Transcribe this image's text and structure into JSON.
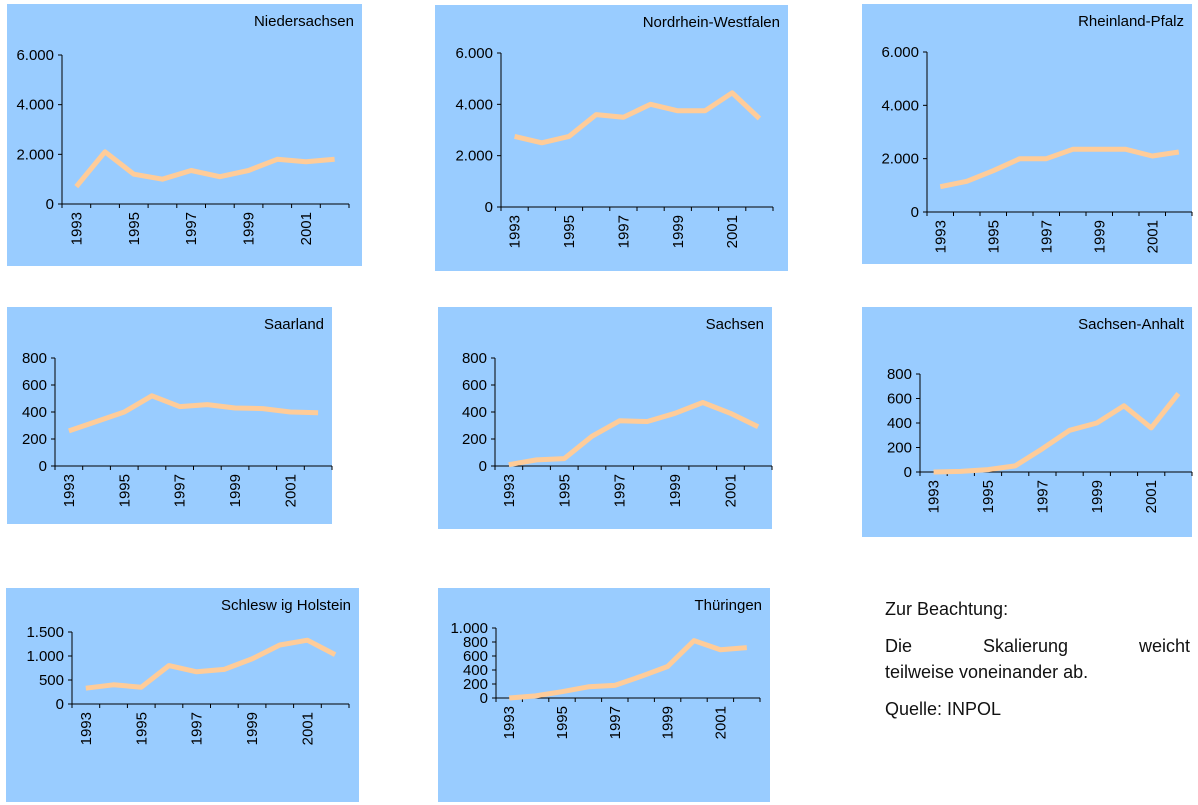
{
  "chart_data": [
    {
      "type": "line",
      "title": "Niedersachsen",
      "x": [
        1993,
        1994,
        1995,
        1996,
        1997,
        1998,
        1999,
        2000,
        2001,
        2002
      ],
      "x_tick_labels": [
        "1993",
        "1995",
        "1997",
        "1999",
        "2001"
      ],
      "series": [
        {
          "values": [
            700,
            2100,
            1200,
            1000,
            1350,
            1100,
            1350,
            1800,
            1700,
            1800
          ]
        }
      ],
      "ylim": [
        0,
        6000
      ],
      "y_ticks": [
        0,
        2000,
        4000,
        6000
      ],
      "y_tick_labels": [
        "0",
        "2.000",
        "4.000",
        "6.000"
      ],
      "line_color": "#ffcc99",
      "background": "#99ccff",
      "grid": false
    },
    {
      "type": "line",
      "title": "Nordrhein-Westfalen",
      "x": [
        1993,
        1994,
        1995,
        1996,
        1997,
        1998,
        1999,
        2000,
        2001,
        2002
      ],
      "x_tick_labels": [
        "1993",
        "1995",
        "1997",
        "1999",
        "2001"
      ],
      "series": [
        {
          "values": [
            2750,
            2500,
            2750,
            3600,
            3500,
            4000,
            3750,
            3750,
            4450,
            3450
          ]
        }
      ],
      "ylim": [
        0,
        6000
      ],
      "y_ticks": [
        0,
        2000,
        4000,
        6000
      ],
      "y_tick_labels": [
        "0",
        "2.000",
        "4.000",
        "6.000"
      ],
      "line_color": "#ffcc99",
      "background": "#99ccff",
      "grid": false
    },
    {
      "type": "line",
      "title": "Rheinland-Pfalz",
      "x": [
        1993,
        1994,
        1995,
        1996,
        1997,
        1998,
        1999,
        2000,
        2001,
        2002
      ],
      "x_tick_labels": [
        "1993",
        "1995",
        "1997",
        "1999",
        "2001"
      ],
      "series": [
        {
          "values": [
            950,
            1150,
            1550,
            2000,
            2000,
            2350,
            2350,
            2350,
            2100,
            2250
          ]
        }
      ],
      "ylim": [
        0,
        6000
      ],
      "y_ticks": [
        0,
        2000,
        4000,
        6000
      ],
      "y_tick_labels": [
        "0",
        "2.000",
        "4.000",
        "6.000"
      ],
      "line_color": "#ffcc99",
      "background": "#99ccff",
      "grid": false
    },
    {
      "type": "line",
      "title": "Saarland",
      "x": [
        1993,
        1994,
        1995,
        1996,
        1997,
        1998,
        1999,
        2000,
        2001,
        2002
      ],
      "x_tick_labels": [
        "1993",
        "1995",
        "1997",
        "1999",
        "2001"
      ],
      "series": [
        {
          "values": [
            260,
            330,
            400,
            520,
            440,
            455,
            430,
            425,
            400,
            395
          ]
        }
      ],
      "ylim": [
        0,
        800
      ],
      "y_ticks": [
        0,
        200,
        400,
        600,
        800
      ],
      "y_tick_labels": [
        "0",
        "200",
        "400",
        "600",
        "800"
      ],
      "line_color": "#ffcc99",
      "background": "#99ccff",
      "grid": false
    },
    {
      "type": "line",
      "title": "Sachsen",
      "x": [
        1993,
        1994,
        1995,
        1996,
        1997,
        1998,
        1999,
        2000,
        2001,
        2002
      ],
      "x_tick_labels": [
        "1993",
        "1995",
        "1997",
        "1999",
        "2001"
      ],
      "series": [
        {
          "values": [
            10,
            45,
            55,
            220,
            335,
            330,
            390,
            470,
            390,
            290
          ]
        }
      ],
      "ylim": [
        0,
        800
      ],
      "y_ticks": [
        0,
        200,
        400,
        600,
        800
      ],
      "y_tick_labels": [
        "0",
        "200",
        "400",
        "600",
        "800"
      ],
      "line_color": "#ffcc99",
      "background": "#99ccff",
      "grid": false
    },
    {
      "type": "line",
      "title": "Sachsen-Anhalt",
      "x": [
        1993,
        1994,
        1995,
        1996,
        1997,
        1998,
        1999,
        2000,
        2001,
        2002
      ],
      "x_tick_labels": [
        "1993",
        "1995",
        "1997",
        "1999",
        "2001"
      ],
      "series": [
        {
          "values": [
            0,
            5,
            20,
            50,
            190,
            340,
            400,
            540,
            360,
            640
          ]
        }
      ],
      "ylim": [
        0,
        800
      ],
      "y_ticks": [
        0,
        200,
        400,
        600,
        800
      ],
      "y_tick_labels": [
        "0",
        "200",
        "400",
        "600",
        "800"
      ],
      "line_color": "#ffcc99",
      "background": "#99ccff",
      "grid": false
    },
    {
      "type": "line",
      "title": "Schlesw ig Holstein",
      "x": [
        1993,
        1994,
        1995,
        1996,
        1997,
        1998,
        1999,
        2000,
        2001,
        2002
      ],
      "x_tick_labels": [
        "1993",
        "1995",
        "1997",
        "1999",
        "2001"
      ],
      "series": [
        {
          "values": [
            330,
            400,
            350,
            800,
            670,
            720,
            940,
            1230,
            1330,
            1030
          ]
        }
      ],
      "ylim": [
        0,
        1500
      ],
      "y_ticks": [
        0,
        500,
        1000,
        1500
      ],
      "y_tick_labels": [
        "0",
        "500",
        "1.000",
        "1.500"
      ],
      "line_color": "#ffcc99",
      "background": "#99ccff",
      "grid": false
    },
    {
      "type": "line",
      "title": "Thüringen",
      "x": [
        1993,
        1994,
        1995,
        1996,
        1997,
        1998,
        1999,
        2000,
        2001,
        2002
      ],
      "x_tick_labels": [
        "1993",
        "1995",
        "1997",
        "1999",
        "2001"
      ],
      "series": [
        {
          "values": [
            0,
            30,
            90,
            160,
            180,
            310,
            450,
            820,
            690,
            720
          ]
        }
      ],
      "ylim": [
        0,
        1000
      ],
      "y_ticks": [
        0,
        200,
        400,
        600,
        800,
        1000
      ],
      "y_tick_labels": [
        "0",
        "200",
        "400",
        "600",
        "800",
        "1.000"
      ],
      "line_color": "#ffcc99",
      "background": "#99ccff",
      "grid": false
    }
  ],
  "note": {
    "heading": "Zur Beachtung:",
    "text_line1": "Die Skalierung weicht",
    "text_line2": "teilweise voneinander ab.",
    "source": "Quelle: INPOL"
  }
}
